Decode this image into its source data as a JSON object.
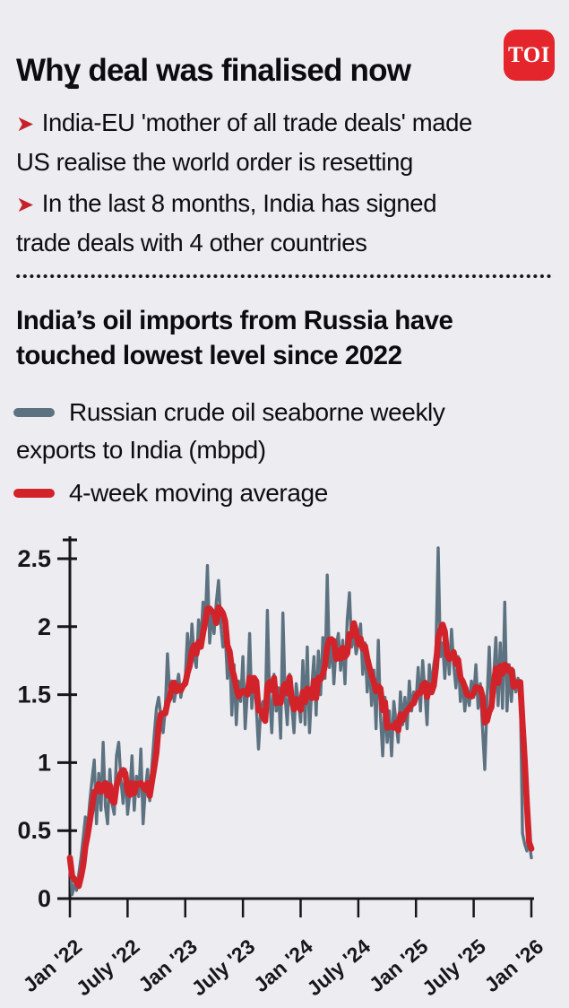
{
  "header": {
    "title": "Why deal was finalised now",
    "logo_text": "TOI"
  },
  "bullets": [
    {
      "line1": "India-EU 'mother of all trade deals' made",
      "line2": "US realise the world order is resetting"
    },
    {
      "line1": "In the last 8 months, India has signed",
      "line2": "trade deals with 4 other countries"
    }
  ],
  "chart_section": {
    "title_line1": "India’s oil imports from Russia have",
    "title_line2": "touched lowest level since 2022",
    "legend": [
      {
        "lines": [
          "Russian crude oil seaborne weekly",
          "exports to India (mbpd)"
        ],
        "color": "#5d7280"
      },
      {
        "lines": [
          "4-week moving average"
        ],
        "color": "#d2232a"
      }
    ]
  },
  "colors": {
    "background": "#edecf1",
    "text": "#0e0e12",
    "axis": "#17171a",
    "weekly_line": "#5d7280",
    "moving_average_line": "#d2232a",
    "accent_red": "#c4222a",
    "logo_red": "#e4262c"
  },
  "chart_data": {
    "type": "line",
    "title": "India's oil imports from Russia have touched lowest level since 2022",
    "xlabel": "",
    "ylabel": "mbpd",
    "ylim": [
      0,
      2.7
    ],
    "grid": false,
    "legend_position": "above-chart",
    "y_ticks": [
      0,
      0.5,
      1,
      1.5,
      2,
      2.5
    ],
    "x_tick_labels": [
      "Jan '22",
      "July '22",
      "Jan '23",
      "July '23",
      "Jan '24",
      "July '24",
      "Jan '25",
      "July '25",
      "Jan '26"
    ],
    "x_tick_week_index": [
      0,
      26,
      52,
      78,
      104,
      130,
      156,
      182,
      208
    ],
    "x_unit": "weeks since Jan 2022",
    "series": [
      {
        "name": "Russian crude oil seaborne weekly exports to India (mbpd)",
        "color": "#5d7280",
        "values": [
          0.3,
          0.03,
          0.1,
          0.06,
          0.18,
          0.3,
          0.45,
          0.6,
          0.52,
          0.72,
          0.88,
          1.02,
          0.55,
          0.92,
          0.65,
          1.15,
          0.68,
          0.55,
          0.95,
          0.7,
          0.62,
          1.05,
          1.15,
          0.88,
          0.7,
          0.95,
          0.62,
          0.78,
          1.05,
          0.65,
          0.9,
          0.75,
          1.1,
          0.55,
          0.8,
          0.95,
          0.72,
          0.98,
          1.2,
          1.4,
          1.48,
          1.35,
          1.22,
          1.4,
          1.8,
          1.5,
          1.6,
          1.45,
          1.55,
          1.65,
          1.48,
          1.58,
          1.62,
          1.95,
          1.7,
          2.02,
          1.78,
          1.7,
          2.05,
          1.88,
          2.18,
          2.02,
          2.45,
          1.88,
          2.1,
          1.95,
          2.18,
          2.34,
          2.02,
          1.85,
          1.95,
          1.62,
          1.85,
          1.35,
          1.72,
          1.28,
          1.6,
          1.45,
          1.78,
          1.25,
          1.52,
          1.95,
          1.4,
          1.62,
          1.42,
          1.1,
          1.38,
          1.45,
          1.3,
          2.12,
          1.5,
          1.22,
          1.65,
          1.38,
          1.55,
          1.18,
          2.1,
          1.48,
          1.28,
          1.65,
          1.42,
          1.22,
          1.58,
          1.45,
          1.3,
          1.75,
          1.28,
          1.85,
          1.22,
          1.55,
          1.78,
          1.35,
          1.82,
          1.5,
          1.92,
          1.62,
          2.38,
          1.7,
          1.92,
          1.58,
          1.85,
          1.95,
          1.68,
          1.9,
          1.58,
          2.05,
          2.25,
          1.85,
          1.95,
          1.8,
          1.88,
          2.02,
          1.65,
          1.88,
          1.52,
          1.75,
          1.42,
          1.68,
          1.25,
          1.9,
          1.35,
          1.05,
          1.48,
          1.15,
          1.38,
          1.05,
          1.45,
          1.3,
          1.15,
          1.52,
          1.28,
          1.48,
          1.25,
          1.6,
          1.38,
          1.52,
          1.45,
          1.7,
          1.38,
          1.75,
          1.52,
          1.28,
          1.72,
          1.55,
          1.72,
          1.82,
          2.58,
          1.78,
          1.88,
          1.62,
          1.9,
          1.65,
          1.98,
          1.72,
          1.55,
          1.78,
          1.45,
          1.62,
          1.38,
          1.55,
          1.42,
          1.6,
          1.48,
          1.72,
          1.4,
          1.58,
          1.25,
          0.95,
          1.45,
          1.85,
          1.38,
          1.62,
          1.92,
          1.42,
          1.88,
          1.4,
          2.18,
          1.38,
          1.72,
          1.45,
          1.68,
          1.52,
          1.62,
          1.55,
          0.48,
          0.4,
          0.35,
          0.42,
          0.3
        ]
      },
      {
        "name": "4-week moving average",
        "color": "#d2232a",
        "derived": "trailing 4-week moving average of the weekly series"
      }
    ]
  }
}
